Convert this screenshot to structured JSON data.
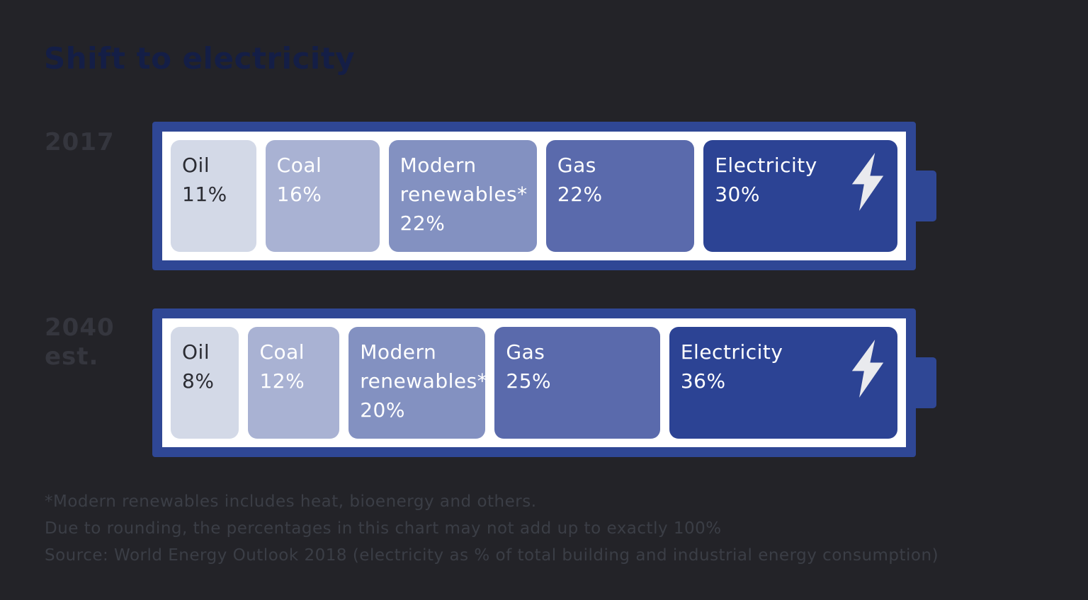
{
  "title": "Shift to electricity",
  "rows": [
    {
      "label": "2017",
      "segments": [
        {
          "name": "Oil",
          "value": 11,
          "value_label": "11%",
          "color": "#d3d9e7",
          "text_color": "#2b2c33"
        },
        {
          "name": "Coal",
          "value": 16,
          "value_label": "16%",
          "color": "#a9b2d3",
          "text_color": "#ffffff"
        },
        {
          "name": "Modern renewables*",
          "value": 22,
          "value_label": "22%",
          "color": "#8391c1",
          "text_color": "#ffffff"
        },
        {
          "name": "Gas",
          "value": 22,
          "value_label": "22%",
          "color": "#5a6aac",
          "text_color": "#ffffff"
        },
        {
          "name": "Electricity",
          "value": 30,
          "value_label": "30%",
          "color": "#2c4394",
          "text_color": "#ffffff",
          "icon": "lightning-bolt"
        }
      ]
    },
    {
      "label": "2040 est.",
      "segments": [
        {
          "name": "Oil",
          "value": 8,
          "value_label": "8%",
          "color": "#d3d9e7",
          "text_color": "#2b2c33"
        },
        {
          "name": "Coal",
          "value": 12,
          "value_label": "12%",
          "color": "#a9b2d3",
          "text_color": "#ffffff"
        },
        {
          "name": "Modern renewables*",
          "value": 20,
          "value_label": "20%",
          "color": "#8391c1",
          "text_color": "#ffffff"
        },
        {
          "name": "Gas",
          "value": 25,
          "value_label": "25%",
          "color": "#5a6aac",
          "text_color": "#ffffff"
        },
        {
          "name": "Electricity",
          "value": 36,
          "value_label": "36%",
          "color": "#2c4394",
          "text_color": "#ffffff",
          "icon": "lightning-bolt"
        }
      ]
    }
  ],
  "footnotes": [
    "*Modern renewables includes heat, bioenergy and others.",
    "Due to rounding, the percentages in this chart may not add up to exactly 100%",
    "Source: World Energy Outlook 2018 (electricity as % of total building and industrial energy consumption)"
  ],
  "colors": {
    "background": "#232328",
    "title": "#141e46",
    "row_label": "#35363e",
    "battery_border": "#2f4795",
    "battery_inner": "#ffffff",
    "footnote": "#3b3e46",
    "bolt_icon": "#e9eaee"
  },
  "chart_data": {
    "type": "bar",
    "variant": "horizontal-stacked-battery",
    "title": "Shift to electricity",
    "unit": "%",
    "categories": [
      "2017",
      "2040 est."
    ],
    "series": [
      {
        "name": "Oil",
        "values": [
          11,
          8
        ]
      },
      {
        "name": "Coal",
        "values": [
          16,
          12
        ]
      },
      {
        "name": "Modern renewables*",
        "values": [
          22,
          20
        ]
      },
      {
        "name": "Gas",
        "values": [
          22,
          25
        ]
      },
      {
        "name": "Electricity",
        "values": [
          30,
          36
        ]
      }
    ],
    "legend": "labels shown inside segments",
    "annotations": [
      "*Modern renewables includes heat, bioenergy and others.",
      "Due to rounding, the percentages in this chart may not add up to exactly 100%",
      "Source: World Energy Outlook 2018 (electricity as % of total building and industrial energy consumption)"
    ]
  }
}
